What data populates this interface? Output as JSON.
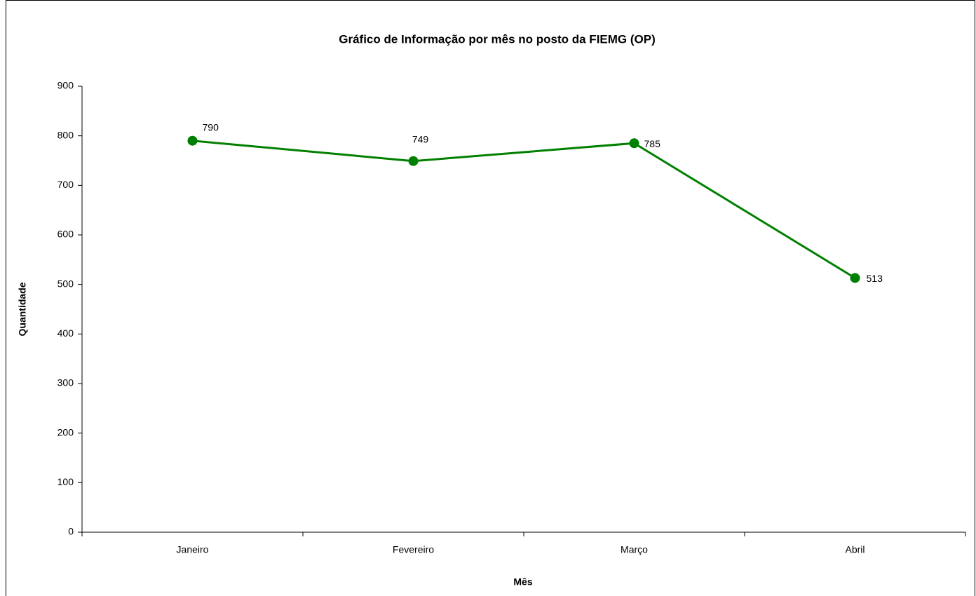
{
  "chart_data": {
    "type": "line",
    "title": "Gráfico de Informação por mês no posto da FIEMG (OP)",
    "x_label": "Mês",
    "y_label": "Quantidade",
    "categories": [
      "Janeiro",
      "Fevereiro",
      "Março",
      "Abril"
    ],
    "series": [
      {
        "name": "Quantidade",
        "color": "#008000",
        "values": [
          790,
          749,
          785,
          513
        ]
      }
    ],
    "ylim": [
      0,
      900
    ],
    "yticks": [
      0,
      100,
      200,
      300,
      400,
      500,
      600,
      700,
      800,
      900
    ],
    "grid": false
  }
}
